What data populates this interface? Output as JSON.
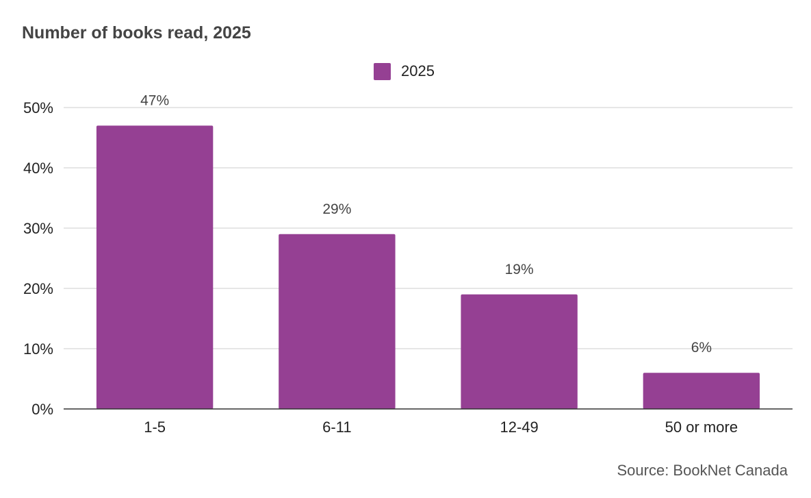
{
  "chart_data": {
    "type": "bar",
    "title": "Number of books read, 2025",
    "categories": [
      "1-5",
      "6-11",
      "12-49",
      "50 or more"
    ],
    "series": [
      {
        "name": "2025",
        "values": [
          47,
          29,
          19,
          6
        ],
        "color": "#954093"
      }
    ],
    "data_labels": [
      "47%",
      "29%",
      "19%",
      "6%"
    ],
    "y_ticks": [
      0,
      10,
      20,
      30,
      40,
      50
    ],
    "y_tick_labels": [
      "0%",
      "10%",
      "20%",
      "30%",
      "40%",
      "50%"
    ],
    "ylim": [
      0,
      50
    ],
    "grid": true,
    "legend": "top-center",
    "source": "Source: BookNet Canada"
  }
}
